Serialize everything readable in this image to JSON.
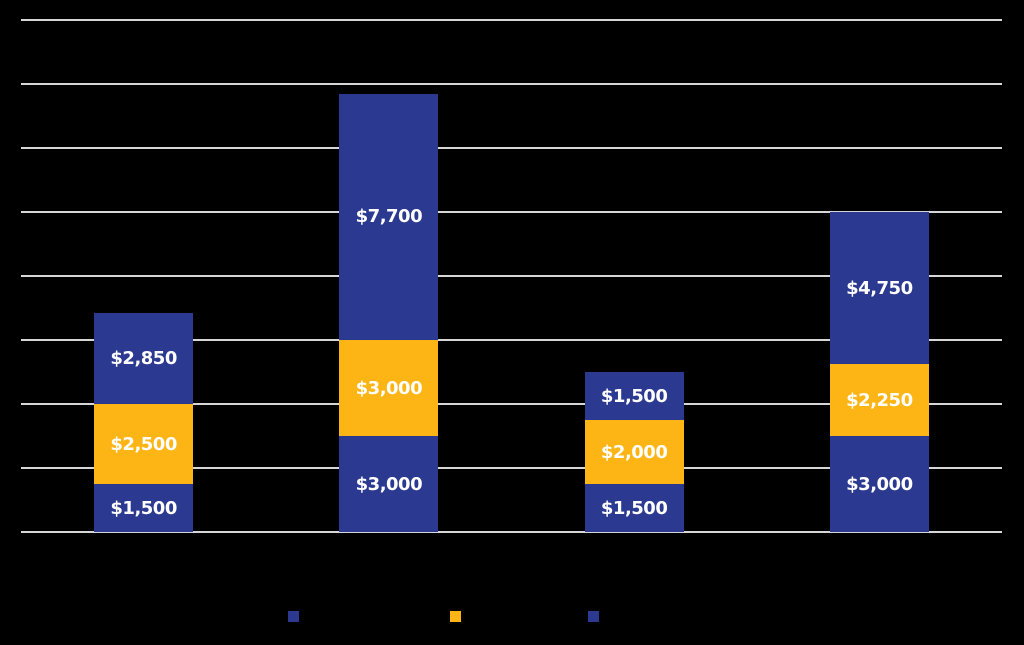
{
  "colors": {
    "background": "#000000",
    "gridline": "#D6D6D6",
    "data_label_text": "#FFFFFF",
    "series_blue": "#2B3990",
    "series_yellow": "#FCB515"
  },
  "chart_data": {
    "type": "bar",
    "stacked": true,
    "orientation": "vertical",
    "title": "",
    "xlabel": "",
    "ylabel": "",
    "ylim": [
      0,
      16000
    ],
    "gridline_step": 2000,
    "grid": true,
    "categories": [
      "",
      "",
      "",
      ""
    ],
    "series": [
      {
        "color": "#2B3990",
        "values": [
          1500,
          3000,
          1500,
          3000
        ],
        "data_labels": [
          "$1,500",
          "$3,000",
          "$1,500",
          "$3,000"
        ]
      },
      {
        "color": "#FCB515",
        "values": [
          2500,
          3000,
          2000,
          2250
        ],
        "data_labels": [
          "$2,500",
          "$3,000",
          "$2,000",
          "$2,250"
        ]
      },
      {
        "color": "#2B3990",
        "values": [
          2850,
          7700,
          1500,
          4750
        ],
        "data_labels": [
          "$2,850",
          "$7,700",
          "$1,500",
          "$4,750"
        ]
      }
    ],
    "bar_totals": [
      6850,
      13700,
      5000,
      10000
    ],
    "legend": {
      "position": "bottom",
      "labels_visible": false,
      "markers": [
        {
          "color": "#2B3990"
        },
        {
          "color": "#FCB515"
        },
        {
          "color": "#2B3990"
        }
      ]
    }
  }
}
